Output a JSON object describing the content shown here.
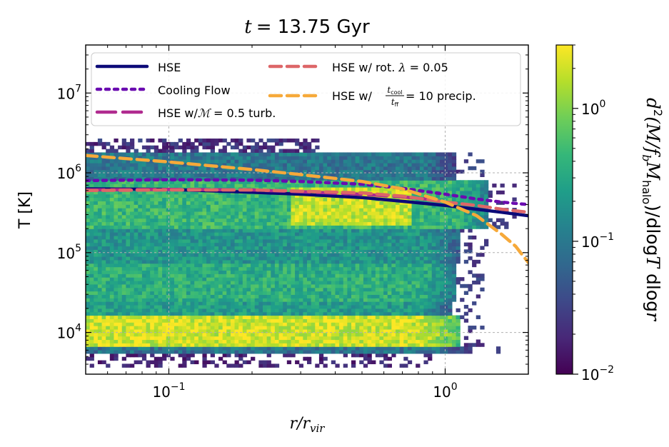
{
  "chart_data": {
    "type": "heatmap",
    "title": "t = 13.75 Gyr",
    "title_prefix": "t",
    "title_value": "= 13.75 Gyr",
    "xlabel": "r/r",
    "xlabel_sub": "vir",
    "ylabel": "T [K]",
    "x_scale": "log",
    "y_scale": "log",
    "xlim": [
      0.05,
      2.0
    ],
    "ylim": [
      3000,
      40000000
    ],
    "grid": true,
    "x_ticks": [
      {
        "value": 0.1,
        "base": "10",
        "exp": "−1"
      },
      {
        "value": 1.0,
        "base": "10",
        "exp": "0"
      }
    ],
    "y_ticks": [
      {
        "value": 10000,
        "base": "10",
        "exp": "4"
      },
      {
        "value": 100000,
        "base": "10",
        "exp": "5"
      },
      {
        "value": 1000000,
        "base": "10",
        "exp": "6"
      },
      {
        "value": 10000000,
        "base": "10",
        "exp": "7"
      }
    ],
    "colorbar": {
      "scale": "log",
      "range": [
        0.01,
        3.0
      ],
      "colormap": [
        "#440154",
        "#482878",
        "#3e4989",
        "#31688e",
        "#26828e",
        "#1f9e89",
        "#35b779",
        "#6ece58",
        "#b5de2b",
        "#fde725"
      ],
      "ticks": [
        {
          "value": 0.01,
          "base": "10",
          "exp": "−2"
        },
        {
          "value": 0.1,
          "base": "10",
          "exp": "−1"
        },
        {
          "value": 1.0,
          "base": "10",
          "exp": "0"
        }
      ],
      "label": "d²(M/f_b M_halo)/dlogT dlogr",
      "label_parts": {
        "a": "d",
        "b": "2",
        "c": "(M/f",
        "d": "b",
        "e": "M",
        "f": "halo",
        "g": ")/dlog",
        "h": "T",
        "i": " dlog",
        "j": "r"
      }
    },
    "legend_position": "top",
    "series": [
      {
        "name": "HSE",
        "style": "solid",
        "color": "#0c0a78",
        "x": [
          0.05,
          0.1,
          0.2,
          0.3,
          0.5,
          0.7,
          1.0,
          1.3,
          1.6,
          2.0
        ],
        "y": [
          630000,
          620000,
          570000,
          540000,
          490000,
          440000,
          390000,
          350000,
          320000,
          290000
        ]
      },
      {
        "name": "Cooling Flow",
        "style": "dotted",
        "color": "#6a0bb0",
        "x": [
          0.05,
          0.1,
          0.2,
          0.3,
          0.5,
          0.7,
          1.0,
          1.3,
          1.6,
          2.0
        ],
        "y": [
          800000,
          820000,
          810000,
          780000,
          720000,
          640000,
          540000,
          470000,
          430000,
          400000
        ]
      },
      {
        "name": "HSE w/ℳ = 0.5 turb.",
        "label_main": "HSE w/",
        "label_math": "ℳ",
        "label_tail": " = 0.5 turb.",
        "style": "long-dash",
        "color": "#b02b8f",
        "x": [
          0.05,
          0.1,
          0.2,
          0.3,
          0.5,
          0.7,
          0.9
        ],
        "y": [
          610000,
          620000,
          610000,
          580000,
          540000,
          500000,
          460000
        ]
      },
      {
        "name": "HSE w/ rot. λ = 0.05",
        "label_main": "HSE w/ rot. ",
        "label_math": "λ",
        "label_tail": " = 0.05",
        "style": "dash",
        "color": "#dd6668",
        "x": [
          0.05,
          0.1,
          0.2,
          0.3,
          0.5,
          0.7,
          1.0,
          1.3,
          1.6,
          2.0
        ],
        "y": [
          600000,
          610000,
          610000,
          590000,
          560000,
          510000,
          430000,
          390000,
          350000,
          320000
        ]
      },
      {
        "name": "HSE w/ t_cool/t_ff = 10 precip.",
        "label_main": "HSE w/ ",
        "label_num": "t",
        "label_num_sub": "cool",
        "label_den": "t",
        "label_den_sub": "ff",
        "label_tail": " = 10 precip.",
        "style": "dash",
        "color": "#f6a93a",
        "x": [
          0.05,
          0.1,
          0.2,
          0.3,
          0.5,
          0.7,
          1.0,
          1.3,
          1.6,
          1.8,
          2.0
        ],
        "y": [
          1650000,
          1370000,
          1100000,
          950000,
          780000,
          630000,
          430000,
          290000,
          170000,
          120000,
          75000
        ]
      }
    ],
    "density_bands": [
      {
        "tmin": 7000,
        "tmax": 16000,
        "rmax": 1.12,
        "level": 0.93
      },
      {
        "tmin": 5500,
        "tmax": 7000,
        "rmax": 1.25,
        "level": 0.38
      },
      {
        "tmin": 16000,
        "tmax": 25000,
        "rmax": 1.05,
        "level": 0.55
      },
      {
        "tmin": 25000,
        "tmax": 70000,
        "rmax": 1.1,
        "level": 0.62
      },
      {
        "tmin": 70000,
        "tmax": 200000,
        "rmax": 1.15,
        "level": 0.52
      },
      {
        "tmin": 200000,
        "tmax": 800000,
        "rmax": 1.45,
        "level": 0.66
      },
      {
        "tmin": 800000,
        "tmax": 1800000,
        "rmax": 1.1,
        "level": 0.4
      }
    ]
  }
}
